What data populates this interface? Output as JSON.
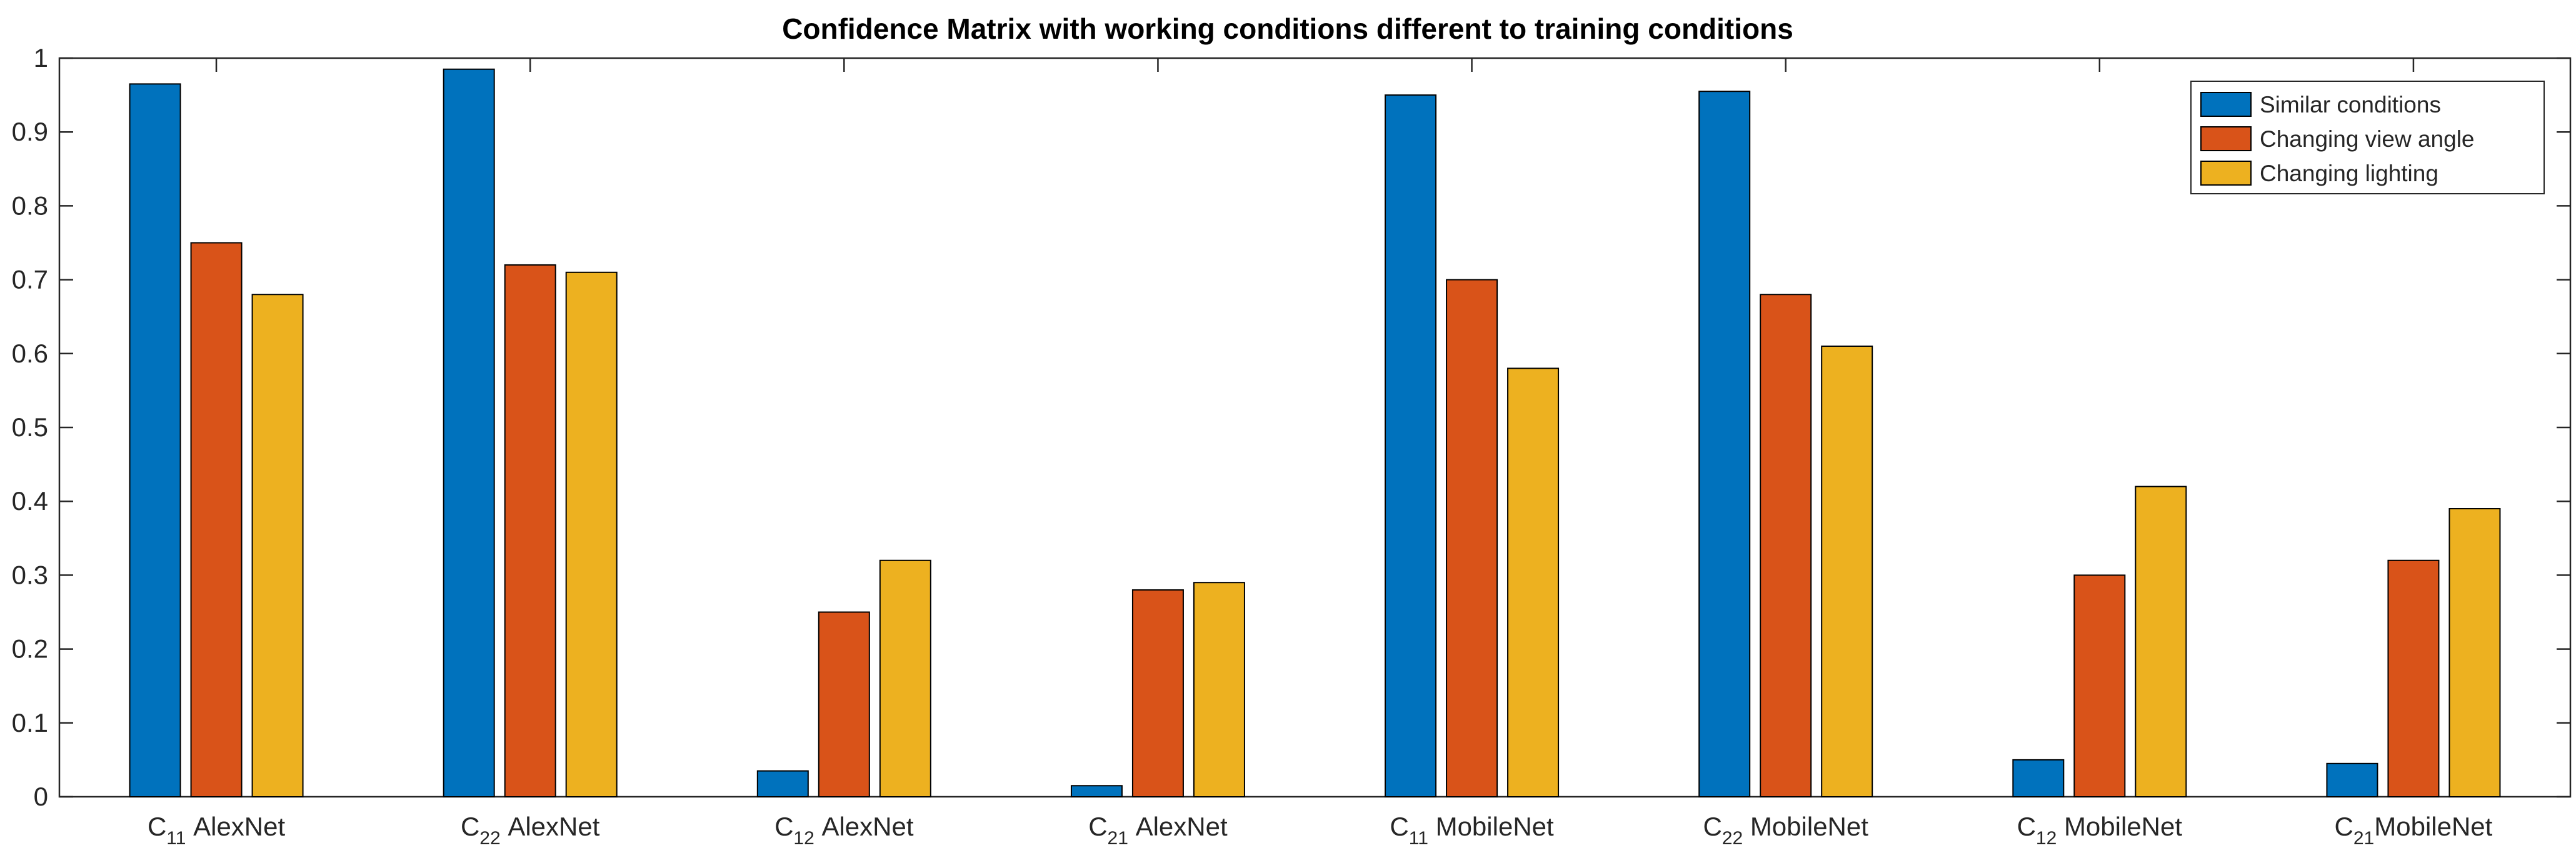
{
  "chart_data": {
    "type": "bar",
    "title": "Confidence Matrix with working conditions different to training conditions",
    "xlabel": "",
    "ylabel": "",
    "ylim": [
      0,
      1
    ],
    "yticks": [
      "0",
      "0.1",
      "0.2",
      "0.3",
      "0.4",
      "0.5",
      "0.6",
      "0.7",
      "0.8",
      "0.9",
      "1"
    ],
    "categories": [
      {
        "main": "C",
        "sub": "11",
        "suffix": " AlexNet"
      },
      {
        "main": "C",
        "sub": "22",
        "suffix": " AlexNet"
      },
      {
        "main": "C",
        "sub": "12",
        "suffix": " AlexNet"
      },
      {
        "main": "C",
        "sub": "21",
        "suffix": " AlexNet"
      },
      {
        "main": "C",
        "sub": "11",
        "suffix": " MobileNet"
      },
      {
        "main": "C",
        "sub": "22",
        "suffix": " MobileNet"
      },
      {
        "main": "C",
        "sub": "12",
        "suffix": " MobileNet"
      },
      {
        "main": "C",
        "sub": "21",
        "suffix": "MobileNet"
      }
    ],
    "series": [
      {
        "name": "Similar conditions",
        "color": "#0072BD",
        "values": [
          0.965,
          0.985,
          0.035,
          0.015,
          0.95,
          0.955,
          0.05,
          0.045
        ]
      },
      {
        "name": "Changing view angle",
        "color": "#D95319",
        "values": [
          0.75,
          0.72,
          0.25,
          0.28,
          0.7,
          0.68,
          0.3,
          0.32
        ]
      },
      {
        "name": "Changing lighting",
        "color": "#EDB120",
        "values": [
          0.68,
          0.71,
          0.32,
          0.29,
          0.58,
          0.61,
          0.42,
          0.39
        ]
      }
    ],
    "grid": false,
    "legend_position": "top-right"
  }
}
